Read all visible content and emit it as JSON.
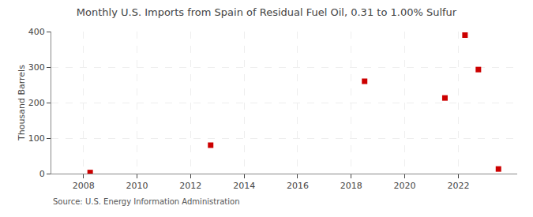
{
  "chart_data": {
    "type": "scatter",
    "title": "Monthly U.S. Imports from Spain of Residual Fuel Oil, 0.31 to 1.00% Sulfur",
    "y_label": "Thousand Barrels",
    "annotations": [
      "Source: U.S. Energy Information Administration"
    ],
    "x": [
      2008.25,
      2012.75,
      2018.5,
      2021.5,
      2022.25,
      2022.75,
      2023.5
    ],
    "values": [
      3,
      80,
      260,
      213,
      390,
      293,
      13
    ],
    "color": "#cc0000",
    "marker": "square",
    "xlim": [
      2006.8,
      2024.2
    ],
    "ylim": [
      0,
      400
    ],
    "xticks": [
      2008,
      2010,
      2012,
      2014,
      2016,
      2018,
      2020,
      2022
    ],
    "yticks": [
      0,
      100,
      200,
      300,
      400
    ],
    "grid": true
  }
}
